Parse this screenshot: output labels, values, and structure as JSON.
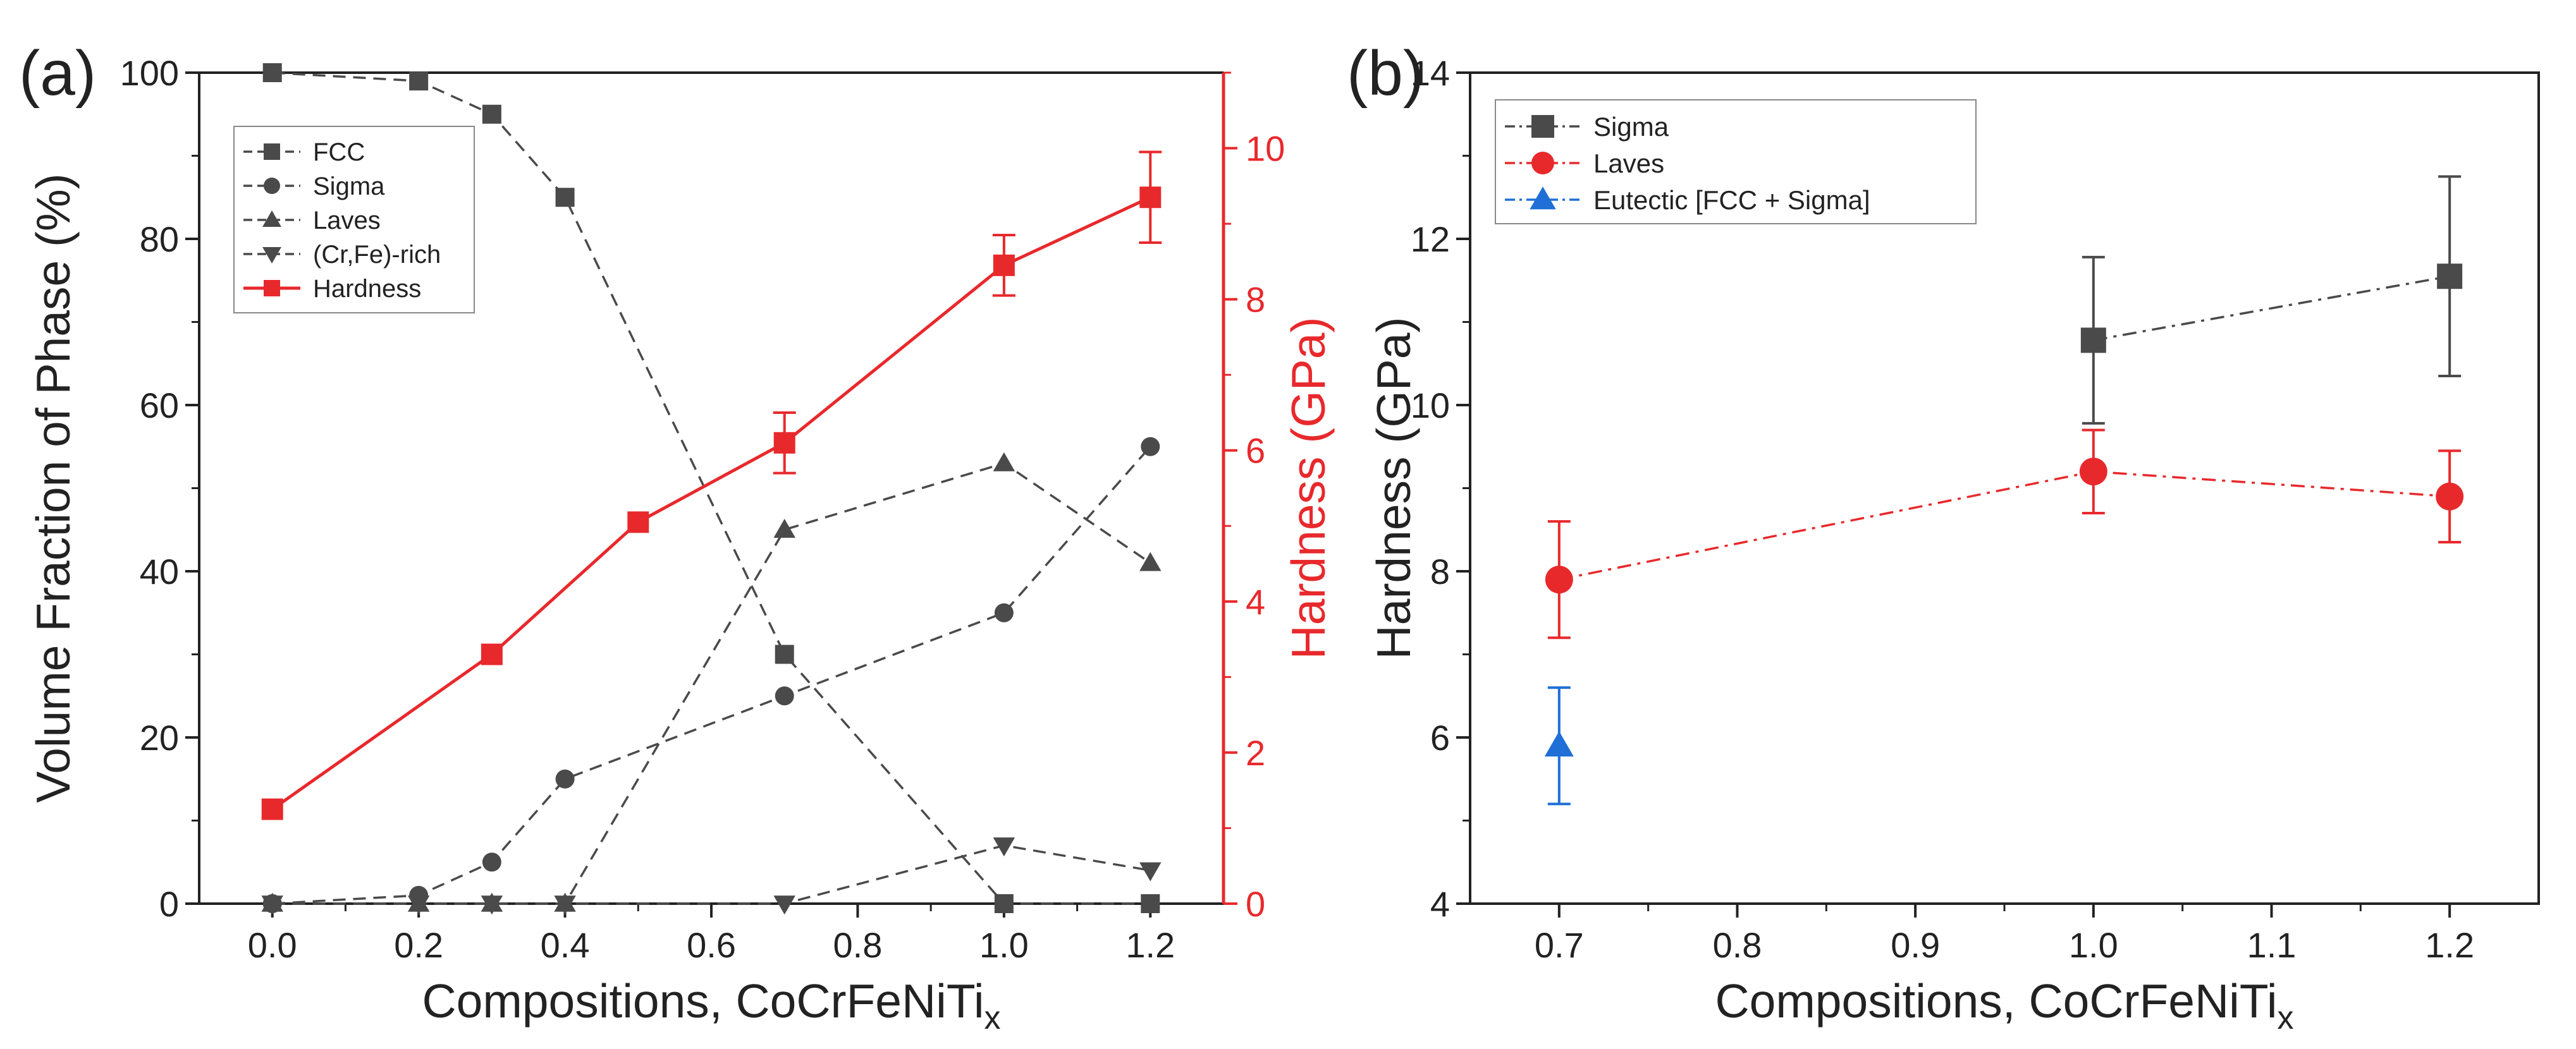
{
  "chart_data": [
    {
      "type": "line",
      "panel_label": "(a)",
      "xlabel": "Compositions, CoCrFeNiTi",
      "xlabel_sub": "x",
      "ylabel": "Volume Fraction of Phase (%)",
      "y2label": "Hardness (GPa)",
      "xlim": [
        -0.1,
        1.3
      ],
      "ylim": [
        0,
        100
      ],
      "y2lim": [
        0,
        11
      ],
      "xticks": [
        "0.0",
        "0.2",
        "0.4",
        "0.6",
        "0.8",
        "1.0",
        "1.2"
      ],
      "yticks": [
        "0",
        "20",
        "40",
        "60",
        "80",
        "100"
      ],
      "y2ticks": [
        "0",
        "2",
        "4",
        "6",
        "8",
        "10"
      ],
      "x": [
        0.0,
        0.2,
        0.3,
        0.4,
        0.7,
        1.0,
        1.2
      ],
      "series": [
        {
          "name": "FCC",
          "axis": "left",
          "marker": "square",
          "color": "#4a4a4a",
          "values": [
            100,
            99,
            95,
            85,
            30,
            0,
            0
          ]
        },
        {
          "name": "Sigma",
          "axis": "left",
          "marker": "circle",
          "color": "#4a4a4a",
          "values": [
            0,
            1,
            5,
            15,
            25,
            35,
            55
          ]
        },
        {
          "name": "Laves",
          "axis": "left",
          "marker": "triangle-up",
          "color": "#4a4a4a",
          "values": [
            0,
            0,
            0,
            0,
            45,
            53,
            41
          ]
        },
        {
          "name": "(Cr,Fe)-rich",
          "axis": "left",
          "marker": "triangle-down",
          "color": "#4a4a4a",
          "values": [
            0,
            0,
            0,
            0,
            0,
            7,
            4
          ]
        },
        {
          "name": "Hardness",
          "axis": "right",
          "marker": "square",
          "color": "#e8292c",
          "x": [
            0.0,
            0.3,
            0.5,
            0.7,
            1.0,
            1.2
          ],
          "values": [
            1.25,
            3.3,
            5.05,
            6.1,
            8.45,
            9.35
          ],
          "errors": [
            null,
            null,
            null,
            0.4,
            0.4,
            0.6
          ]
        }
      ]
    },
    {
      "type": "line",
      "panel_label": "(b)",
      "xlabel": "Compositions, CoCrFeNiTi",
      "xlabel_sub": "x",
      "ylabel": "Hardness (GPa)",
      "xlim": [
        0.65,
        1.25
      ],
      "ylim": [
        4,
        14
      ],
      "xticks": [
        "0.7",
        "0.8",
        "0.9",
        "1.0",
        "1.1",
        "1.2"
      ],
      "yticks": [
        "4",
        "6",
        "8",
        "10",
        "12",
        "14"
      ],
      "series": [
        {
          "name": "Sigma",
          "marker": "square",
          "color": "#4a4a4a",
          "x": [
            1.0,
            1.2
          ],
          "values": [
            10.78,
            11.55
          ],
          "errors": [
            1.0,
            1.2
          ]
        },
        {
          "name": "Laves",
          "marker": "circle",
          "color": "#e8292c",
          "x": [
            0.7,
            1.0,
            1.2
          ],
          "values": [
            7.9,
            9.2,
            8.9
          ],
          "errors": [
            0.7,
            0.5,
            0.55
          ]
        },
        {
          "name": "Eutectic [FCC + Sigma]",
          "marker": "triangle-up",
          "color": "#1f6fd6",
          "x": [
            0.7
          ],
          "values": [
            5.9
          ],
          "errors": [
            0.7
          ]
        }
      ]
    }
  ]
}
